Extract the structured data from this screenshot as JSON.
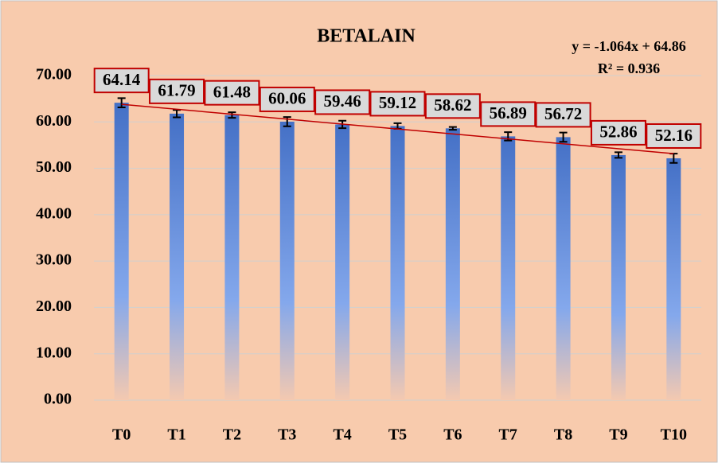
{
  "chart_data": {
    "type": "bar",
    "title": "BETALAIN",
    "categories": [
      "T0",
      "T1",
      "T2",
      "T3",
      "T4",
      "T5",
      "T6",
      "T7",
      "T8",
      "T9",
      "T10"
    ],
    "values": [
      64.14,
      61.79,
      61.48,
      60.06,
      59.46,
      59.12,
      58.62,
      56.89,
      56.72,
      52.86,
      52.16
    ],
    "errors": [
      1.0,
      0.8,
      0.6,
      1.0,
      0.8,
      0.6,
      0.3,
      0.9,
      1.0,
      0.6,
      1.0
    ],
    "color": "#4472c4",
    "ylim": [
      0,
      70
    ],
    "yticks": [
      {
        "value": 0,
        "label": "0.00"
      },
      {
        "value": 10,
        "label": "10.00"
      },
      {
        "value": 20,
        "label": "20.00"
      },
      {
        "value": 30,
        "label": "30.00"
      },
      {
        "value": 40,
        "label": "40.00"
      },
      {
        "value": 50,
        "label": "50.00"
      },
      {
        "value": 60,
        "label": "60.00"
      },
      {
        "value": 70,
        "label": "70.00"
      }
    ],
    "grid": true,
    "trendline": {
      "slope": -1.064,
      "intercept": 64.86,
      "color": "#c00000",
      "equation": "y = -1.064x + 64.86",
      "r_squared": "R² = 0.936"
    }
  }
}
